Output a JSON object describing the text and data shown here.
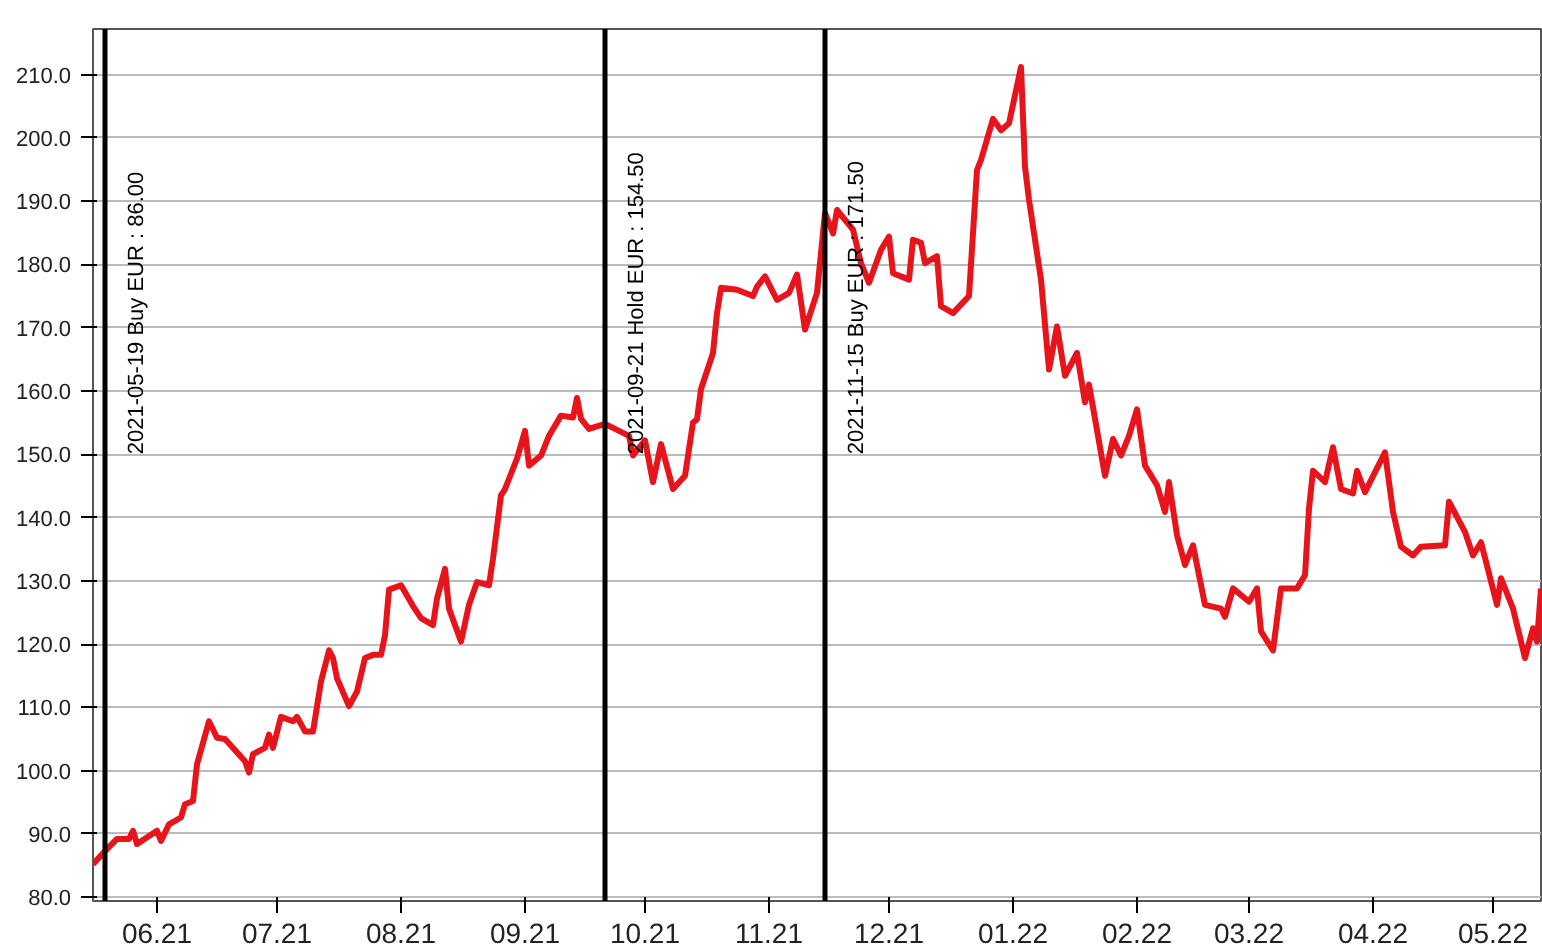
{
  "chart_data": {
    "type": "line",
    "x": [
      "2021-05-16",
      "2021-05-19",
      "2021-05-22",
      "2021-05-25",
      "2021-05-26",
      "2021-05-27",
      "2021-06-01",
      "2021-06-02",
      "2021-06-04",
      "2021-06-07",
      "2021-06-08",
      "2021-06-10",
      "2021-06-11",
      "2021-06-14",
      "2021-06-16",
      "2021-06-18",
      "2021-06-23",
      "2021-06-24",
      "2021-06-25",
      "2021-06-28",
      "2021-06-29",
      "2021-06-30",
      "2021-07-02",
      "2021-07-05",
      "2021-07-06",
      "2021-07-08",
      "2021-07-10",
      "2021-07-12",
      "2021-07-14",
      "2021-07-15",
      "2021-07-16",
      "2021-07-19",
      "2021-07-21",
      "2021-07-23",
      "2021-07-25",
      "2021-07-27",
      "2021-07-28",
      "2021-07-29",
      "2021-08-01",
      "2021-08-04",
      "2021-08-06",
      "2021-08-09",
      "2021-08-10",
      "2021-08-12",
      "2021-08-13",
      "2021-08-16",
      "2021-08-18",
      "2021-08-20",
      "2021-08-23",
      "2021-08-24",
      "2021-08-26",
      "2021-08-27",
      "2021-08-30",
      "2021-09-01",
      "2021-09-02",
      "2021-09-05",
      "2021-09-07",
      "2021-09-10",
      "2021-09-13",
      "2021-09-14",
      "2021-09-15",
      "2021-09-17",
      "2021-09-21",
      "2021-09-27",
      "2021-09-28",
      "2021-10-01",
      "2021-10-03",
      "2021-10-05",
      "2021-10-08",
      "2021-10-11",
      "2021-10-13",
      "2021-10-14",
      "2021-10-15",
      "2021-10-18",
      "2021-10-19",
      "2021-10-20",
      "2021-10-24",
      "2021-10-28",
      "2021-10-29",
      "2021-10-31",
      "2021-11-03",
      "2021-11-06",
      "2021-11-08",
      "2021-11-10",
      "2021-11-13",
      "2021-11-15",
      "2021-11-17",
      "2021-11-18",
      "2021-11-22",
      "2021-11-24",
      "2021-11-26",
      "2021-11-29",
      "2021-12-01",
      "2021-12-02",
      "2021-12-06",
      "2021-12-07",
      "2021-12-09",
      "2021-12-10",
      "2021-12-13",
      "2021-12-14",
      "2021-12-17",
      "2021-12-21",
      "2021-12-23",
      "2021-12-24",
      "2021-12-27",
      "2021-12-29",
      "2021-12-31",
      "2022-01-03",
      "2022-01-04",
      "2022-01-05",
      "2022-01-08",
      "2022-01-10",
      "2022-01-12",
      "2022-01-14",
      "2022-01-17",
      "2022-01-19",
      "2022-01-20",
      "2022-01-24",
      "2022-01-26",
      "2022-01-28",
      "2022-01-30",
      "2022-02-01",
      "2022-02-03",
      "2022-02-06",
      "2022-02-08",
      "2022-02-09",
      "2022-02-11",
      "2022-02-13",
      "2022-02-15",
      "2022-02-18",
      "2022-02-22",
      "2022-02-23",
      "2022-02-25",
      "2022-03-01",
      "2022-03-03",
      "2022-03-04",
      "2022-03-07",
      "2022-03-09",
      "2022-03-13",
      "2022-03-15",
      "2022-03-16",
      "2022-03-17",
      "2022-03-20",
      "2022-03-22",
      "2022-03-24",
      "2022-03-27",
      "2022-03-28",
      "2022-03-30",
      "2022-04-04",
      "2022-04-06",
      "2022-04-08",
      "2022-04-11",
      "2022-04-13",
      "2022-04-19",
      "2022-04-20",
      "2022-04-24",
      "2022-04-26",
      "2022-04-28",
      "2022-05-02",
      "2022-05-03",
      "2022-05-06",
      "2022-05-09",
      "2022-05-11",
      "2022-05-12",
      "2022-05-13"
    ],
    "series": [
      {
        "color": "#e8141c",
        "values": [
          85.2,
          87.3,
          89.2,
          89.2,
          90.5,
          88.4,
          90.5,
          88.9,
          91.5,
          92.6,
          94.7,
          95.2,
          101.0,
          107.8,
          105.2,
          105.0,
          101.5,
          99.7,
          102.6,
          103.6,
          105.7,
          103.6,
          108.5,
          107.8,
          108.5,
          106.2,
          106.2,
          114.1,
          119.0,
          117.8,
          114.6,
          110.2,
          112.5,
          117.8,
          118.3,
          118.3,
          121.4,
          128.6,
          129.3,
          126.0,
          124.1,
          123.0,
          127.2,
          131.9,
          125.6,
          120.4,
          126.2,
          129.8,
          129.3,
          133.5,
          143.5,
          144.5,
          149.3,
          153.7,
          148.2,
          149.8,
          152.9,
          156.1,
          155.8,
          158.9,
          155.6,
          154.0,
          154.8,
          152.9,
          149.8,
          152.2,
          145.6,
          151.6,
          144.5,
          146.6,
          155.0,
          155.5,
          160.3,
          166.0,
          172.3,
          176.3,
          176.0,
          175.0,
          176.5,
          178.1,
          174.4,
          175.5,
          178.4,
          169.7,
          175.5,
          188.1,
          184.9,
          188.6,
          185.5,
          180.2,
          177.1,
          182.3,
          184.4,
          178.6,
          177.6,
          183.9,
          183.4,
          180.2,
          181.3,
          173.4,
          172.3,
          175.0,
          194.9,
          196.5,
          203.0,
          201.2,
          202.3,
          211.2,
          195.4,
          190.2,
          177.6,
          163.4,
          170.2,
          162.4,
          166.0,
          158.2,
          161.0,
          146.6,
          152.4,
          149.8,
          152.9,
          157.1,
          148.2,
          145.1,
          140.9,
          145.6,
          137.2,
          132.5,
          135.6,
          126.2,
          125.6,
          124.3,
          128.8,
          126.7,
          128.8,
          122.0,
          119.0,
          128.8,
          128.8,
          130.9,
          141.4,
          147.4,
          145.6,
          151.1,
          144.5,
          143.8,
          147.4,
          144.0,
          150.3,
          140.9,
          135.4,
          134.0,
          135.4,
          135.6,
          142.5,
          137.7,
          134.0,
          136.1,
          126.2,
          130.4,
          125.6,
          117.8,
          122.5,
          120.4,
          128.8
        ]
      }
    ],
    "xlim": [
      "2021-05-16",
      "2022-05-13"
    ],
    "xticks": [
      {
        "value": "2021-06-01",
        "label": "06.21"
      },
      {
        "value": "2021-07-01",
        "label": "07.21"
      },
      {
        "value": "2021-08-01",
        "label": "08.21"
      },
      {
        "value": "2021-09-01",
        "label": "09.21"
      },
      {
        "value": "2021-10-01",
        "label": "10.21"
      },
      {
        "value": "2021-11-01",
        "label": "11.21"
      },
      {
        "value": "2021-12-01",
        "label": "12.21"
      },
      {
        "value": "2022-01-01",
        "label": "01.22"
      },
      {
        "value": "2022-02-01",
        "label": "02.22"
      },
      {
        "value": "2022-03-01",
        "label": "03.22"
      },
      {
        "value": "2022-04-01",
        "label": "04.22"
      },
      {
        "value": "2022-05-01",
        "label": "05.22"
      }
    ],
    "ylim": [
      79.4,
      217.2
    ],
    "yticks": [
      {
        "value": 80,
        "label": "80.0"
      },
      {
        "value": 90,
        "label": "90.0"
      },
      {
        "value": 100,
        "label": "100.0"
      },
      {
        "value": 110,
        "label": "110.0"
      },
      {
        "value": 120,
        "label": "120.0"
      },
      {
        "value": 130,
        "label": "130.0"
      },
      {
        "value": 140,
        "label": "140.0"
      },
      {
        "value": 150,
        "label": "150.0"
      },
      {
        "value": 160,
        "label": "160.0"
      },
      {
        "value": 170,
        "label": "170.0"
      },
      {
        "value": 180,
        "label": "180.0"
      },
      {
        "value": 190,
        "label": "190.0"
      },
      {
        "value": 200,
        "label": "200.0"
      },
      {
        "value": 210,
        "label": "210.0"
      }
    ],
    "ref_lines": [
      {
        "axis": "x",
        "value": "2021-05-19",
        "label": "2021-05-19 Buy EUR : 86.00",
        "color": "#000000"
      },
      {
        "axis": "x",
        "value": "2021-09-21",
        "label": "2021-09-21 Hold EUR : 154.50",
        "color": "#000000"
      },
      {
        "axis": "x",
        "value": "2021-11-15",
        "label": "2021-11-15 Buy EUR : 171.50",
        "color": "#000000"
      }
    ],
    "grid": "y",
    "line_style": "solid"
  }
}
